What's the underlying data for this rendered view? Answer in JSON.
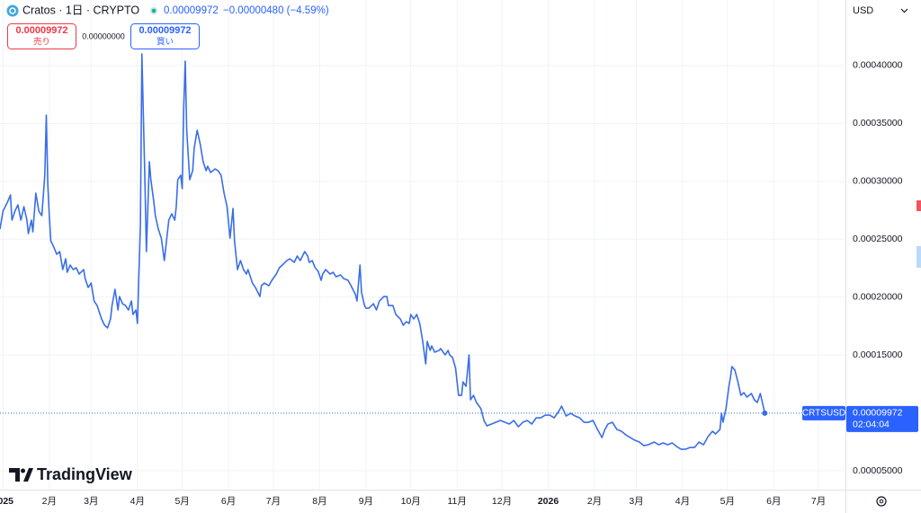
{
  "header": {
    "symbol": "Cratos · 1日 · CRYPTO",
    "last": "0.00009972",
    "change": "−0.00000480 (−4.59%)"
  },
  "trade": {
    "sell_price": "0.00009972",
    "sell_label": "売り",
    "spread": "0.00000000",
    "buy_price": "0.00009972",
    "buy_label": "買い"
  },
  "currency": "USD",
  "price_label": {
    "symbol": "CRTSUSD",
    "price": "0.00009972",
    "countdown": "02:04:04"
  },
  "brand": "TradingView",
  "chart_data": {
    "type": "line",
    "color": "#3a6ee8",
    "grid": true,
    "xlim": [
      -2,
      564
    ],
    "ylim": [
      3.37e-05,
      0.0004566
    ],
    "xticks": [
      {
        "value": 0,
        "label": "2025"
      },
      {
        "value": 31,
        "label": "2月"
      },
      {
        "value": 59,
        "label": "3月"
      },
      {
        "value": 90,
        "label": "4月"
      },
      {
        "value": 120,
        "label": "5月"
      },
      {
        "value": 151,
        "label": "6月"
      },
      {
        "value": 181,
        "label": "7月"
      },
      {
        "value": 212,
        "label": "8月"
      },
      {
        "value": 243,
        "label": "9月"
      },
      {
        "value": 273,
        "label": "10月"
      },
      {
        "value": 304,
        "label": "11月"
      },
      {
        "value": 334,
        "label": "12月"
      },
      {
        "value": 365,
        "label": "2026"
      },
      {
        "value": 396,
        "label": "2月"
      },
      {
        "value": 424,
        "label": "3月"
      },
      {
        "value": 455,
        "label": "4月"
      },
      {
        "value": 485,
        "label": "5月"
      },
      {
        "value": 516,
        "label": "6月"
      },
      {
        "value": 546,
        "label": "7月"
      }
    ],
    "yticks": [
      {
        "value": 5e-05,
        "label": "0.00005000"
      },
      {
        "value": 0.00015,
        "label": "0.00015000"
      },
      {
        "value": 0.0002,
        "label": "0.00020000"
      },
      {
        "value": 0.00025,
        "label": "0.00025000"
      },
      {
        "value": 0.0003,
        "label": "0.00030000"
      },
      {
        "value": 0.00035,
        "label": "0.00035000"
      },
      {
        "value": 0.0004,
        "label": "0.00040000"
      }
    ],
    "x": [
      -2,
      0,
      3,
      5,
      6,
      8,
      10,
      12,
      14,
      16,
      17,
      19,
      20,
      22,
      24,
      26,
      28,
      29,
      30,
      31,
      32,
      34,
      36,
      38,
      40,
      42,
      43,
      45,
      47,
      49,
      51,
      54,
      55,
      57,
      59,
      61,
      63,
      64,
      66,
      68,
      70,
      72,
      73,
      75,
      77,
      78,
      80,
      82,
      84,
      86,
      87,
      89,
      90,
      92,
      93,
      94,
      95,
      96,
      98,
      99,
      101,
      102,
      104,
      106,
      108,
      110,
      111,
      113,
      115,
      116,
      117,
      119,
      120,
      121,
      122,
      123,
      125,
      127,
      128,
      130,
      132,
      134,
      136,
      137,
      139,
      142,
      144,
      146,
      148,
      150,
      152,
      154,
      155,
      157,
      159,
      161,
      163,
      164,
      167,
      169,
      172,
      173,
      175,
      178,
      180,
      183,
      185,
      187,
      190,
      192,
      195,
      197,
      199,
      202,
      204,
      205,
      207,
      209,
      211,
      213,
      214,
      216,
      219,
      221,
      223,
      226,
      228,
      231,
      233,
      236,
      237,
      239,
      240,
      242,
      243,
      245,
      248,
      250,
      252,
      255,
      257,
      258,
      261,
      263,
      266,
      268,
      270,
      272,
      273,
      275,
      277,
      279,
      281,
      283,
      284,
      286,
      287,
      289,
      292,
      293,
      296,
      298,
      299,
      301,
      303,
      305,
      307,
      308,
      310,
      312,
      313,
      315,
      317,
      320,
      322,
      324,
      327,
      330,
      333,
      336,
      339,
      342,
      345,
      348,
      351,
      354,
      357,
      360,
      363,
      366,
      369,
      372,
      374,
      377,
      380,
      383,
      386,
      389,
      392,
      395,
      398,
      401,
      403,
      405,
      408,
      411,
      414,
      417,
      420,
      423,
      426,
      429,
      432,
      436,
      439,
      442,
      445,
      448,
      451,
      454,
      457,
      460,
      463,
      466,
      469,
      472,
      475,
      477,
      480,
      481,
      482,
      484,
      486,
      487,
      488,
      490,
      492,
      494,
      496,
      498,
      501,
      503,
      505,
      507,
      508,
      510
    ],
    "values": [
      0.00025872,
      0.00027424,
      0.000282,
      0.00028821,
      0.00026648,
      0.00027424,
      0.00027967,
      0.00026648,
      0.00027812,
      0.00026648,
      0.00025484,
      0.00026648,
      0.00025639,
      0.00028976,
      0.00027424,
      0.00027036,
      0.00030528,
      0.00035727,
      0.00029752,
      0.00027036,
      0.00024863,
      0.0002432,
      0.00023699,
      0.00023932,
      0.0002238,
      0.00023311,
      0.00022147,
      0.00022768,
      0.0002238,
      0.00022535,
      0.00021992,
      0.0002238,
      0.00021604,
      0.00020828,
      0.00021216,
      0.00019664,
      0.00019276,
      0.00018888,
      0.00018112,
      0.00017569,
      0.00017336,
      0.00018112,
      0.00019276,
      0.00020673,
      0.00018888,
      0.00020052,
      0.00019431,
      0.00019276,
      0.00018888,
      0.00019664,
      0.000185,
      0.00018888,
      0.00017724,
      0.0002626,
      0.00041004,
      0.00035572,
      0.0003014,
      0.00023932,
      0.00031692,
      0.0003014,
      0.000282,
      0.00027036,
      0.00025872,
      0.00025096,
      0.00023156,
      0.00025484,
      0.00026648,
      0.00027191,
      0.00026648,
      0.00027812,
      0.0003014,
      0.00030528,
      0.00029364,
      0.00036348,
      0.00040383,
      0.00034408,
      0.0003014,
      0.00030916,
      0.00032856,
      0.00034408,
      0.00033244,
      0.00031692,
      0.00030916,
      0.00031304,
      0.00030761,
      0.00031071,
      0.00030916,
      0.00030528,
      0.00028976,
      0.00027812,
      0.00025096,
      0.00027657,
      0.00024863,
      0.0002238,
      0.00023156,
      0.0002238,
      0.00021992,
      0.0002238,
      0.00021216,
      0.00020828,
      0.00020052,
      0.00020983,
      0.00021216,
      0.00020983,
      0.00021449,
      0.00021992,
      0.00022535,
      0.00022768,
      0.00023156,
      0.00023311,
      0.00023001,
      0.00023544,
      0.00023156,
      0.00023932,
      0.00023544,
      0.00023001,
      0.00023156,
      0.00022535,
      0.00022225,
      0.00021449,
      0.00021992,
      0.0002238,
      0.00021992,
      0.00022147,
      0.00021759,
      0.00021914,
      0.00021604,
      0.00021449,
      0.00020983,
      0.00020207,
      0.00019664,
      0.00022768,
      0.0002044,
      0.00019276,
      0.00019043,
      0.00019043,
      0.00019431,
      0.00018888,
      0.00019664,
      0.00020052,
      0.00020052,
      0.00019276,
      0.00019276,
      0.000185,
      0.00018112,
      0.00017569,
      0.00017879,
      0.00017724,
      0.000185,
      0.00018112,
      0.000185,
      0.00017724,
      0.00016172,
      0.00014232,
      0.00016172,
      0.00015396,
      0.00015784,
      0.00015241,
      0.00015396,
      0.00015551,
      0.00015008,
      0.00015396,
      0.00015008,
      0.00014775,
      0.00013844,
      0.00011516,
      0.00011516,
      0.0001268,
      0.00012292,
      0.00015008,
      0.00011128,
      0.00011516,
      0.00010895,
      0.00010352,
      9.343e-05,
      8.878e-05,
      9.033e-05,
      9.188e-05,
      9.343e-05,
      9.188e-05,
      9.033e-05,
      9.343e-05,
      8.8e-05,
      9.188e-05,
      9.343e-05,
      9.033e-05,
      9.576e-05,
      9.576e-05,
      9.809e-05,
      9.809e-05,
      9.576e-05,
      0.00010119,
      0.00010585,
      9.731e-05,
      9.964e-05,
      9.731e-05,
      9.576e-05,
      9.188e-05,
      9.188e-05,
      9.343e-05,
      8.567e-05,
      7.869e-05,
      8.567e-05,
      9.033e-05,
      9.188e-05,
      8.567e-05,
      8.412e-05,
      8.102e-05,
      7.869e-05,
      7.636e-05,
      7.481e-05,
      7.17e-05,
      7.248e-05,
      7.481e-05,
      7.248e-05,
      7.403e-05,
      7.248e-05,
      7.403e-05,
      7.093e-05,
      6.86e-05,
      6.86e-05,
      7.015e-05,
      7.015e-05,
      7.481e-05,
      7.248e-05,
      7.946e-05,
      8.412e-05,
      8.179e-05,
      8.567e-05,
      9.964e-05,
      9.188e-05,
      0.00010352,
      0.00012292,
      0.00013068,
      0.00013999,
      0.00013689,
      0.0001268,
      0.00011516,
      0.00011749,
      0.00011361,
      0.00011671,
      0.00011128,
      0.00010895,
      0.00011671,
      0.00011128,
      9.972e-05
    ]
  }
}
